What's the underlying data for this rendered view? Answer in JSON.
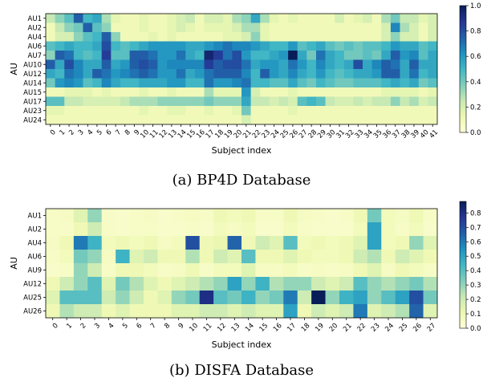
{
  "captions": {
    "a": "(a) BP4D Database",
    "b": "(b) DISFA Database"
  },
  "chart_data": [
    {
      "type": "heatmap",
      "title": "",
      "xlabel": "Subject index",
      "ylabel": "AU",
      "colormap": "YlGnBu",
      "colorbar_range": [
        0.0,
        1.0
      ],
      "colorbar_ticks": [
        "0.0",
        "0.2",
        "0.4",
        "0.6",
        "0.8",
        "1.0"
      ],
      "x": [
        "0",
        "1",
        "2",
        "3",
        "4",
        "5",
        "6",
        "7",
        "8",
        "9",
        "10",
        "11",
        "12",
        "13",
        "14",
        "15",
        "16",
        "17",
        "18",
        "19",
        "20",
        "21",
        "22",
        "23",
        "24",
        "25",
        "26",
        "27",
        "28",
        "29",
        "30",
        "31",
        "32",
        "33",
        "34",
        "35",
        "36",
        "37",
        "38",
        "39",
        "40",
        "41"
      ],
      "y": [
        "AU1",
        "AU2",
        "AU4",
        "AU6",
        "AU7",
        "AU10",
        "AU12",
        "AU14",
        "AU15",
        "AU17",
        "AU23",
        "AU24"
      ],
      "values": [
        [
          0.25,
          0.35,
          0.45,
          0.75,
          0.5,
          0.55,
          0.3,
          0.15,
          0.1,
          0.1,
          0.15,
          0.1,
          0.1,
          0.15,
          0.2,
          0.25,
          0.1,
          0.2,
          0.2,
          0.15,
          0.3,
          0.35,
          0.55,
          0.3,
          0.15,
          0.1,
          0.15,
          0.1,
          0.1,
          0.1,
          0.1,
          0.2,
          0.1,
          0.15,
          0.2,
          0.1,
          0.3,
          0.4,
          0.25,
          0.25,
          0.15,
          0.2
        ],
        [
          0.1,
          0.25,
          0.35,
          0.4,
          0.75,
          0.45,
          0.35,
          0.1,
          0.1,
          0.1,
          0.15,
          0.1,
          0.1,
          0.15,
          0.2,
          0.15,
          0.1,
          0.15,
          0.15,
          0.15,
          0.2,
          0.3,
          0.3,
          0.15,
          0.1,
          0.1,
          0.1,
          0.1,
          0.1,
          0.1,
          0.1,
          0.1,
          0.1,
          0.1,
          0.1,
          0.1,
          0.2,
          0.65,
          0.3,
          0.2,
          0.1,
          0.2
        ],
        [
          0.1,
          0.2,
          0.2,
          0.35,
          0.45,
          0.5,
          0.75,
          0.35,
          0.1,
          0.1,
          0.1,
          0.15,
          0.1,
          0.15,
          0.1,
          0.1,
          0.1,
          0.1,
          0.1,
          0.15,
          0.15,
          0.2,
          0.35,
          0.15,
          0.1,
          0.1,
          0.1,
          0.1,
          0.1,
          0.1,
          0.1,
          0.1,
          0.1,
          0.1,
          0.1,
          0.1,
          0.2,
          0.35,
          0.2,
          0.2,
          0.1,
          0.2
        ],
        [
          0.45,
          0.5,
          0.55,
          0.5,
          0.5,
          0.55,
          0.8,
          0.5,
          0.45,
          0.5,
          0.55,
          0.6,
          0.6,
          0.6,
          0.6,
          0.55,
          0.55,
          0.6,
          0.65,
          0.7,
          0.65,
          0.65,
          0.6,
          0.55,
          0.5,
          0.5,
          0.6,
          0.45,
          0.5,
          0.55,
          0.45,
          0.4,
          0.45,
          0.4,
          0.45,
          0.45,
          0.5,
          0.6,
          0.55,
          0.55,
          0.45,
          0.5
        ],
        [
          0.35,
          0.75,
          0.7,
          0.5,
          0.45,
          0.5,
          0.85,
          0.45,
          0.45,
          0.75,
          0.75,
          0.7,
          0.6,
          0.6,
          0.7,
          0.55,
          0.5,
          0.95,
          0.85,
          0.7,
          0.8,
          0.6,
          0.5,
          0.5,
          0.55,
          0.6,
          1.0,
          0.55,
          0.4,
          0.7,
          0.55,
          0.5,
          0.4,
          0.4,
          0.45,
          0.4,
          0.55,
          0.75,
          0.6,
          0.65,
          0.45,
          0.55
        ],
        [
          0.75,
          0.55,
          0.8,
          0.65,
          0.55,
          0.55,
          0.75,
          0.55,
          0.6,
          0.75,
          0.8,
          0.75,
          0.6,
          0.65,
          0.65,
          0.65,
          0.65,
          0.85,
          0.75,
          0.8,
          0.8,
          0.7,
          0.55,
          0.6,
          0.6,
          0.55,
          0.7,
          0.6,
          0.5,
          0.65,
          0.55,
          0.5,
          0.55,
          0.8,
          0.55,
          0.65,
          0.75,
          0.7,
          0.55,
          0.75,
          0.55,
          0.55
        ],
        [
          0.55,
          0.5,
          0.7,
          0.65,
          0.55,
          0.75,
          0.7,
          0.6,
          0.65,
          0.7,
          0.75,
          0.7,
          0.6,
          0.6,
          0.7,
          0.55,
          0.6,
          0.7,
          0.75,
          0.75,
          0.75,
          0.65,
          0.5,
          0.75,
          0.6,
          0.55,
          0.65,
          0.55,
          0.5,
          0.6,
          0.5,
          0.45,
          0.5,
          0.55,
          0.55,
          0.6,
          0.75,
          0.75,
          0.55,
          0.7,
          0.5,
          0.55
        ],
        [
          0.4,
          0.6,
          0.65,
          0.6,
          0.45,
          0.5,
          0.65,
          0.55,
          0.5,
          0.5,
          0.55,
          0.55,
          0.55,
          0.6,
          0.6,
          0.5,
          0.5,
          0.7,
          0.6,
          0.6,
          0.65,
          0.7,
          0.5,
          0.5,
          0.45,
          0.45,
          0.55,
          0.45,
          0.4,
          0.5,
          0.45,
          0.4,
          0.4,
          0.45,
          0.45,
          0.45,
          0.5,
          0.55,
          0.5,
          0.55,
          0.4,
          0.45
        ],
        [
          0.1,
          0.1,
          0.15,
          0.15,
          0.15,
          0.1,
          0.15,
          0.1,
          0.1,
          0.1,
          0.15,
          0.1,
          0.1,
          0.15,
          0.1,
          0.1,
          0.1,
          0.3,
          0.15,
          0.15,
          0.15,
          0.6,
          0.2,
          0.1,
          0.1,
          0.1,
          0.15,
          0.1,
          0.1,
          0.1,
          0.1,
          0.1,
          0.1,
          0.1,
          0.1,
          0.1,
          0.15,
          0.15,
          0.15,
          0.15,
          0.1,
          0.15
        ],
        [
          0.45,
          0.45,
          0.25,
          0.25,
          0.2,
          0.2,
          0.2,
          0.2,
          0.25,
          0.3,
          0.3,
          0.3,
          0.35,
          0.35,
          0.35,
          0.35,
          0.35,
          0.4,
          0.35,
          0.35,
          0.35,
          0.55,
          0.25,
          0.25,
          0.2,
          0.25,
          0.2,
          0.45,
          0.5,
          0.45,
          0.25,
          0.2,
          0.2,
          0.25,
          0.2,
          0.25,
          0.25,
          0.35,
          0.25,
          0.3,
          0.2,
          0.25
        ],
        [
          0.15,
          0.15,
          0.1,
          0.1,
          0.1,
          0.1,
          0.1,
          0.1,
          0.1,
          0.1,
          0.15,
          0.1,
          0.1,
          0.15,
          0.15,
          0.1,
          0.1,
          0.15,
          0.1,
          0.1,
          0.15,
          0.4,
          0.1,
          0.1,
          0.1,
          0.1,
          0.15,
          0.1,
          0.1,
          0.1,
          0.1,
          0.1,
          0.1,
          0.1,
          0.1,
          0.1,
          0.1,
          0.1,
          0.1,
          0.1,
          0.1,
          0.1
        ],
        [
          0.1,
          0.1,
          0.1,
          0.1,
          0.1,
          0.1,
          0.1,
          0.1,
          0.1,
          0.1,
          0.1,
          0.1,
          0.1,
          0.1,
          0.1,
          0.1,
          0.1,
          0.1,
          0.1,
          0.1,
          0.1,
          0.2,
          0.1,
          0.1,
          0.1,
          0.1,
          0.1,
          0.1,
          0.1,
          0.1,
          0.1,
          0.1,
          0.1,
          0.1,
          0.1,
          0.1,
          0.1,
          0.1,
          0.1,
          0.1,
          0.1,
          0.1
        ]
      ]
    },
    {
      "type": "heatmap",
      "title": "",
      "xlabel": "Subject index",
      "ylabel": "AU",
      "colormap": "YlGnBu",
      "colorbar_range": [
        0.0,
        0.88
      ],
      "colorbar_ticks": [
        "0.0",
        "0.1",
        "0.2",
        "0.3",
        "0.4",
        "0.5",
        "0.6",
        "0.7",
        "0.8"
      ],
      "x": [
        "0",
        "1",
        "2",
        "3",
        "4",
        "5",
        "6",
        "7",
        "8",
        "9",
        "10",
        "11",
        "12",
        "13",
        "14",
        "15",
        "16",
        "17",
        "18",
        "19",
        "20",
        "21",
        "22",
        "23",
        "24",
        "25",
        "26",
        "27"
      ],
      "y": [
        "AU1",
        "AU2",
        "AU4",
        "AU6",
        "AU9",
        "AU12",
        "AU25",
        "AU26"
      ],
      "values": [
        [
          0.05,
          0.06,
          0.15,
          0.3,
          0.05,
          0.04,
          0.05,
          0.06,
          0.04,
          0.05,
          0.06,
          0.05,
          0.1,
          0.08,
          0.1,
          0.05,
          0.05,
          0.1,
          0.06,
          0.05,
          0.04,
          0.05,
          0.1,
          0.35,
          0.08,
          0.06,
          0.1,
          0.05
        ],
        [
          0.05,
          0.05,
          0.1,
          0.2,
          0.05,
          0.04,
          0.05,
          0.05,
          0.04,
          0.04,
          0.05,
          0.04,
          0.08,
          0.06,
          0.08,
          0.04,
          0.04,
          0.08,
          0.05,
          0.04,
          0.04,
          0.04,
          0.08,
          0.5,
          0.08,
          0.05,
          0.08,
          0.04
        ],
        [
          0.06,
          0.1,
          0.6,
          0.45,
          0.08,
          0.1,
          0.08,
          0.1,
          0.06,
          0.08,
          0.7,
          0.1,
          0.12,
          0.65,
          0.1,
          0.2,
          0.15,
          0.4,
          0.08,
          0.1,
          0.08,
          0.1,
          0.15,
          0.5,
          0.08,
          0.1,
          0.3,
          0.15
        ],
        [
          0.05,
          0.08,
          0.35,
          0.3,
          0.06,
          0.45,
          0.15,
          0.2,
          0.1,
          0.1,
          0.25,
          0.1,
          0.2,
          0.15,
          0.4,
          0.1,
          0.1,
          0.15,
          0.1,
          0.08,
          0.08,
          0.1,
          0.2,
          0.25,
          0.1,
          0.2,
          0.15,
          0.1
        ],
        [
          0.04,
          0.05,
          0.3,
          0.2,
          0.05,
          0.1,
          0.1,
          0.08,
          0.05,
          0.06,
          0.1,
          0.05,
          0.08,
          0.08,
          0.15,
          0.06,
          0.06,
          0.08,
          0.05,
          0.06,
          0.05,
          0.06,
          0.1,
          0.15,
          0.06,
          0.1,
          0.08,
          0.05
        ],
        [
          0.1,
          0.2,
          0.3,
          0.4,
          0.15,
          0.35,
          0.25,
          0.15,
          0.1,
          0.15,
          0.2,
          0.25,
          0.3,
          0.5,
          0.3,
          0.45,
          0.25,
          0.3,
          0.3,
          0.2,
          0.15,
          0.2,
          0.4,
          0.3,
          0.25,
          0.3,
          0.35,
          0.25
        ],
        [
          0.15,
          0.4,
          0.4,
          0.4,
          0.2,
          0.3,
          0.2,
          0.1,
          0.15,
          0.3,
          0.35,
          0.8,
          0.4,
          0.35,
          0.45,
          0.3,
          0.35,
          0.6,
          0.2,
          0.95,
          0.3,
          0.45,
          0.5,
          0.3,
          0.4,
          0.5,
          0.7,
          0.35
        ],
        [
          0.1,
          0.25,
          0.2,
          0.2,
          0.1,
          0.15,
          0.1,
          0.1,
          0.1,
          0.15,
          0.15,
          0.2,
          0.2,
          0.15,
          0.2,
          0.15,
          0.15,
          0.5,
          0.1,
          0.2,
          0.15,
          0.2,
          0.6,
          0.15,
          0.2,
          0.25,
          0.65,
          0.15
        ]
      ]
    }
  ]
}
